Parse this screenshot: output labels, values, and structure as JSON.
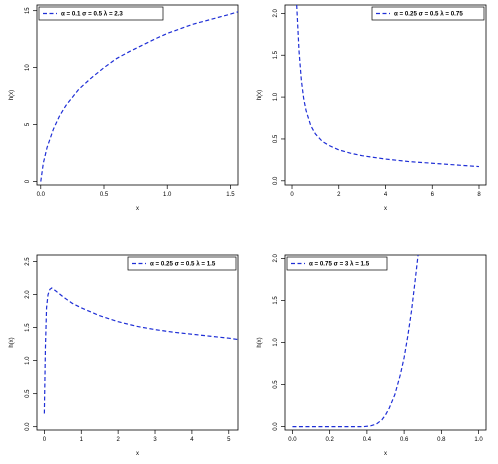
{
  "colors": {
    "curve": "#1f2fd6",
    "axis": "#000000",
    "background": "#ffffff"
  },
  "chart_data": [
    {
      "type": "line",
      "xlabel": "x",
      "ylabel": "h(x)",
      "xlim": [
        -0.03,
        1.56
      ],
      "ylim": [
        -0.3,
        15.5
      ],
      "xticks": [
        0.0,
        0.5,
        1.0,
        1.5
      ],
      "xtick_labels": [
        "0.0",
        "0.5",
        "1.0",
        "1.5"
      ],
      "yticks": [
        0,
        5,
        10,
        15
      ],
      "ytick_labels": [
        "0",
        "5",
        "10",
        "15"
      ],
      "legend": {
        "position": "top-left",
        "label": "α = 0.1  σ = 0.5  λ = 2.3"
      },
      "series": [
        {
          "style": "dashed",
          "x": [
            0.0,
            0.02,
            0.05,
            0.1,
            0.15,
            0.2,
            0.3,
            0.4,
            0.5,
            0.6,
            0.7,
            0.8,
            0.9,
            1.0,
            1.1,
            1.2,
            1.3,
            1.4,
            1.5,
            1.56
          ],
          "y": [
            0.0,
            1.6,
            3.0,
            4.6,
            5.8,
            6.7,
            8.1,
            9.1,
            10.0,
            10.8,
            11.4,
            11.95,
            12.5,
            13.0,
            13.4,
            13.8,
            14.1,
            14.4,
            14.7,
            14.9
          ]
        }
      ]
    },
    {
      "type": "line",
      "xlabel": "x",
      "ylabel": "h(x)",
      "xlim": [
        -0.3,
        8.3
      ],
      "ylim": [
        -0.05,
        2.1
      ],
      "xticks": [
        0,
        2,
        4,
        6,
        8
      ],
      "xtick_labels": [
        "0",
        "2",
        "4",
        "6",
        "8"
      ],
      "yticks": [
        0.0,
        0.5,
        1.0,
        1.5,
        2.0
      ],
      "ytick_labels": [
        "0.0",
        "0.5",
        "1.0",
        "1.5",
        "2.0"
      ],
      "legend": {
        "position": "top-right",
        "label": "α = 0.25  σ = 0.5  λ = 0.75"
      },
      "series": [
        {
          "style": "dashed",
          "x": [
            0.2,
            0.3,
            0.4,
            0.5,
            0.6,
            0.8,
            1.0,
            1.3,
            1.6,
            2.0,
            2.5,
            3.0,
            4.0,
            5.0,
            6.0,
            7.0,
            8.0
          ],
          "y": [
            2.1,
            1.55,
            1.2,
            0.98,
            0.84,
            0.66,
            0.56,
            0.47,
            0.42,
            0.37,
            0.33,
            0.3,
            0.26,
            0.23,
            0.21,
            0.19,
            0.17
          ]
        }
      ]
    },
    {
      "type": "line",
      "xlabel": "x",
      "ylabel": "h(x)",
      "xlim": [
        -0.2,
        5.25
      ],
      "ylim": [
        -0.05,
        2.6
      ],
      "xticks": [
        0,
        1,
        2,
        3,
        4,
        5
      ],
      "xtick_labels": [
        "0",
        "1",
        "2",
        "3",
        "4",
        "5"
      ],
      "yticks": [
        0.0,
        0.5,
        1.0,
        1.5,
        2.0,
        2.5
      ],
      "ytick_labels": [
        "0.0",
        "0.5",
        "1.0",
        "1.5",
        "2.0",
        "2.5"
      ],
      "legend": {
        "position": "top-right",
        "label": "α = 0.25  σ = 0.5  λ = 1.5"
      },
      "series": [
        {
          "style": "dashed",
          "x": [
            0.0,
            0.03,
            0.06,
            0.1,
            0.15,
            0.2,
            0.3,
            0.5,
            0.75,
            1.0,
            1.5,
            2.0,
            2.5,
            3.0,
            3.5,
            4.0,
            4.5,
            5.0,
            5.25
          ],
          "y": [
            0.2,
            1.2,
            1.8,
            2.0,
            2.08,
            2.1,
            2.06,
            1.97,
            1.87,
            1.8,
            1.68,
            1.59,
            1.52,
            1.47,
            1.43,
            1.4,
            1.37,
            1.34,
            1.32
          ]
        }
      ]
    },
    {
      "type": "line",
      "xlabel": "x",
      "ylabel": "h(x)",
      "xlim": [
        -0.04,
        1.04
      ],
      "ylim": [
        -0.04,
        2.04
      ],
      "xticks": [
        0.0,
        0.2,
        0.4,
        0.6,
        0.8,
        1.0
      ],
      "xtick_labels": [
        "0.0",
        "0.2",
        "0.4",
        "0.6",
        "0.8",
        "1.0"
      ],
      "yticks": [
        0.0,
        0.5,
        1.0,
        1.5,
        2.0
      ],
      "ytick_labels": [
        "0.0",
        "0.5",
        "1.0",
        "1.5",
        "2.0"
      ],
      "legend": {
        "position": "top-left",
        "label": "α = 0.75  σ = 3  λ = 1.5"
      },
      "series": [
        {
          "style": "dashed",
          "x": [
            0.0,
            0.1,
            0.2,
            0.3,
            0.38,
            0.42,
            0.45,
            0.48,
            0.5,
            0.52,
            0.55,
            0.58,
            0.6,
            0.62,
            0.64,
            0.66,
            0.675
          ],
          "y": [
            0.0,
            0.0,
            0.0,
            0.0,
            0.0,
            0.01,
            0.03,
            0.08,
            0.14,
            0.22,
            0.38,
            0.62,
            0.82,
            1.08,
            1.38,
            1.75,
            2.04
          ]
        }
      ]
    }
  ]
}
